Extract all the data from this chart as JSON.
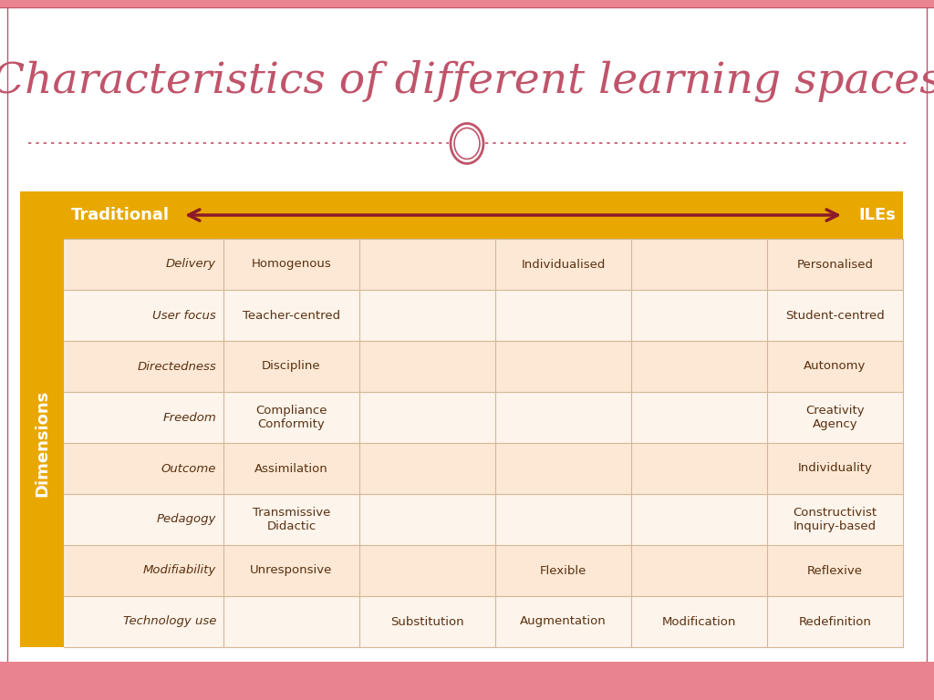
{
  "title": "Characteristics of different learning spaces",
  "title_color": "#c0546a",
  "title_fontsize": 34,
  "background_color": "#ffffff",
  "footer_color": "#e8838f",
  "divider_color": "#c0546a",
  "gold_color": "#e8a800",
  "header_text_color": "#ffffff",
  "header_left": "Traditional",
  "header_right": "ILEs",
  "sidebar_text": "Dimensions",
  "arrow_color": "#8b1a2a",
  "row_colors": [
    "#fce8d5",
    "#fdf4eb"
  ],
  "table_text_color": "#5a3010",
  "rows": [
    {
      "dimension": "Delivery",
      "cols": [
        "Homogenous",
        "",
        "Individualised",
        "",
        "Personalised"
      ]
    },
    {
      "dimension": "User focus",
      "cols": [
        "Teacher-centred",
        "",
        "",
        "",
        "Student-centred"
      ]
    },
    {
      "dimension": "Directedness",
      "cols": [
        "Discipline",
        "",
        "",
        "",
        "Autonomy"
      ]
    },
    {
      "dimension": "Freedom",
      "cols": [
        "Compliance\nConformity",
        "",
        "",
        "",
        "Creativity\nAgency"
      ]
    },
    {
      "dimension": "Outcome",
      "cols": [
        "Assimilation",
        "",
        "",
        "",
        "Individuality"
      ]
    },
    {
      "dimension": "Pedagogy",
      "cols": [
        "Transmissive\nDidactic",
        "",
        "",
        "",
        "Constructivist\nInquiry-based"
      ]
    },
    {
      "dimension": "Modifiability",
      "cols": [
        "Unresponsive",
        "",
        "Flexible",
        "",
        "Reflexive"
      ]
    },
    {
      "dimension": "Technology use",
      "cols": [
        "",
        "Substitution",
        "Augmentation",
        "Modification",
        "Redefinition"
      ]
    }
  ]
}
